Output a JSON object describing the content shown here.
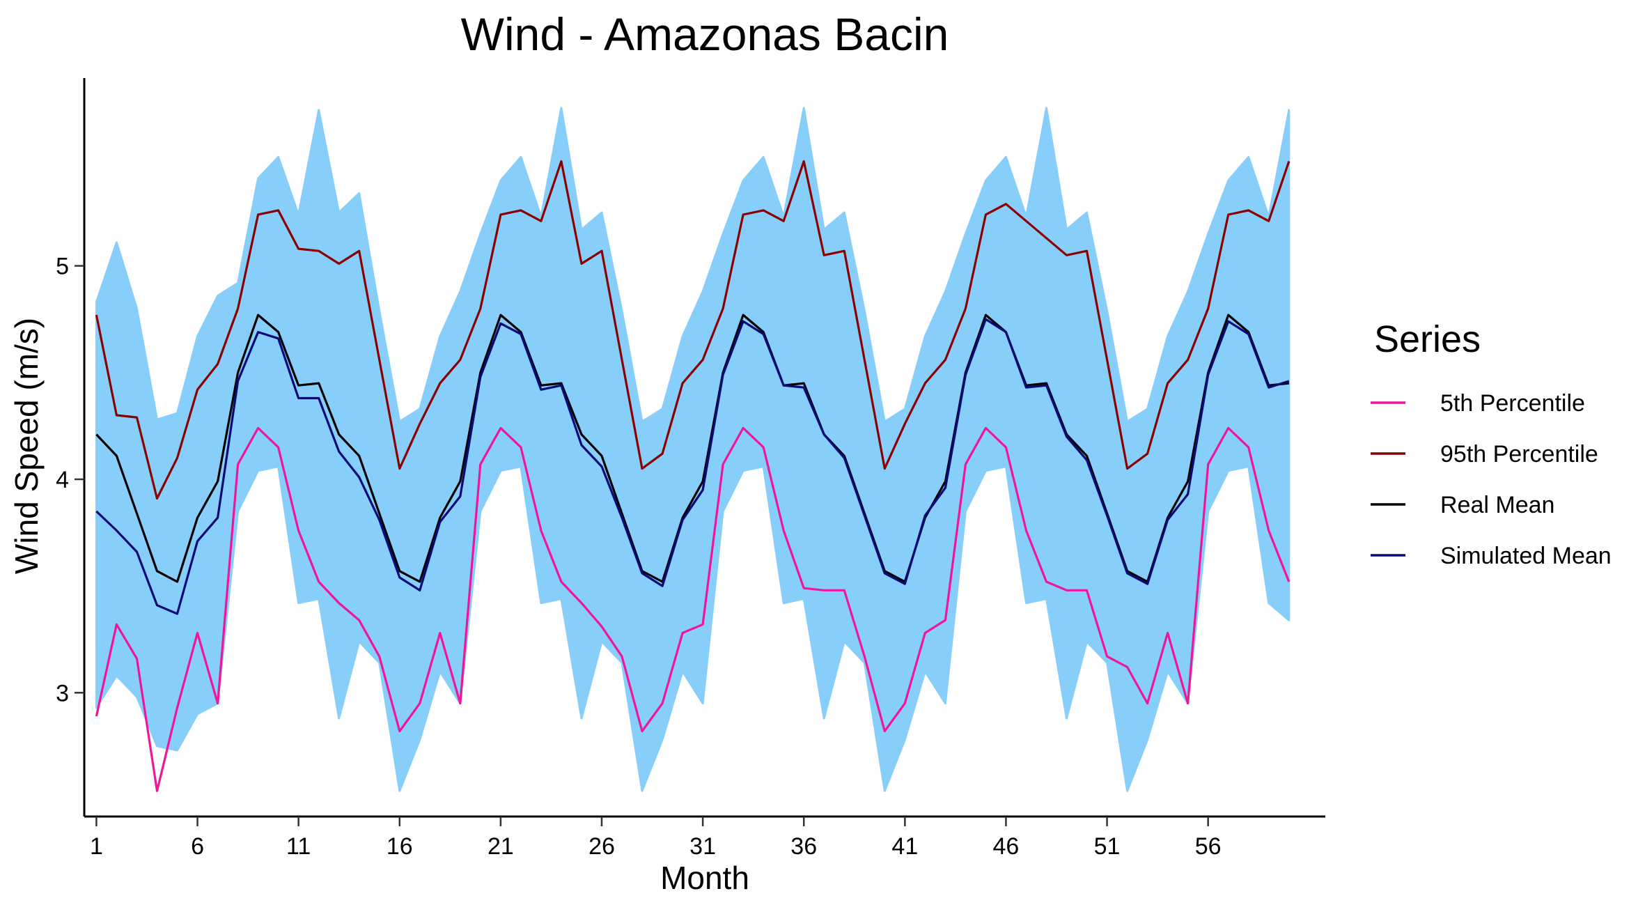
{
  "chart_data": {
    "type": "line",
    "title": "Wind - Amazonas Bacin",
    "xlabel": "Month",
    "ylabel": "Wind Speed (m/s)",
    "xlim": [
      0.4,
      61.8
    ],
    "ylim": [
      2.42,
      5.88
    ],
    "x_ticks": [
      1,
      6,
      11,
      16,
      21,
      26,
      31,
      36,
      41,
      46,
      51,
      56
    ],
    "y_ticks": [
      3,
      4,
      5
    ],
    "grid": false,
    "legend": {
      "title": "Series",
      "position": "right"
    },
    "x": [
      1,
      2,
      3,
      4,
      5,
      6,
      7,
      8,
      9,
      10,
      11,
      12,
      13,
      14,
      15,
      16,
      17,
      18,
      19,
      20,
      21,
      22,
      23,
      24,
      25,
      26,
      27,
      28,
      29,
      30,
      31,
      32,
      33,
      34,
      35,
      36,
      37,
      38,
      39,
      40,
      41,
      42,
      43,
      44,
      45,
      46,
      47,
      48,
      49,
      50,
      51,
      52,
      53,
      54,
      55,
      56,
      57,
      58,
      59,
      60
    ],
    "series": [
      {
        "name": "5th Percentile",
        "color": "#f0169a",
        "values": [
          2.89,
          3.32,
          3.16,
          2.54,
          2.93,
          3.28,
          2.95,
          4.07,
          4.24,
          4.15,
          3.76,
          3.52,
          3.42,
          3.34,
          3.17,
          2.82,
          2.95,
          3.28,
          2.95,
          4.07,
          4.24,
          4.15,
          3.76,
          3.52,
          3.42,
          3.31,
          3.17,
          2.82,
          2.95,
          3.28,
          3.32,
          4.07,
          4.24,
          4.15,
          3.76,
          3.49,
          3.48,
          3.48,
          3.17,
          2.82,
          2.95,
          3.28,
          3.34,
          4.07,
          4.24,
          4.15,
          3.76,
          3.52,
          3.48,
          3.48,
          3.17,
          3.12,
          2.95,
          3.28,
          2.95,
          4.07,
          4.24,
          4.15,
          3.76,
          3.52
        ]
      },
      {
        "name": "95th Percentile",
        "color": "#8b0000",
        "values": [
          4.77,
          4.3,
          4.29,
          3.91,
          4.1,
          4.42,
          4.54,
          4.8,
          5.24,
          5.26,
          5.08,
          5.07,
          5.01,
          5.07,
          4.56,
          4.05,
          4.26,
          4.45,
          4.56,
          4.8,
          5.24,
          5.26,
          5.21,
          5.49,
          5.01,
          5.07,
          4.56,
          4.05,
          4.12,
          4.45,
          4.56,
          4.8,
          5.24,
          5.26,
          5.21,
          5.49,
          5.05,
          5.07,
          4.56,
          4.05,
          4.26,
          4.45,
          4.56,
          4.8,
          5.24,
          5.29,
          5.21,
          5.13,
          5.05,
          5.07,
          4.56,
          4.05,
          4.12,
          4.45,
          4.56,
          4.8,
          5.24,
          5.26,
          5.21,
          5.49
        ]
      },
      {
        "name": "Real Mean",
        "color": "#000000",
        "values": [
          4.21,
          4.11,
          3.84,
          3.57,
          3.52,
          3.82,
          3.99,
          4.5,
          4.77,
          4.69,
          4.44,
          4.45,
          4.21,
          4.11,
          3.84,
          3.57,
          3.52,
          3.82,
          3.99,
          4.5,
          4.77,
          4.69,
          4.44,
          4.45,
          4.21,
          4.11,
          3.84,
          3.57,
          3.52,
          3.82,
          3.99,
          4.5,
          4.77,
          4.69,
          4.44,
          4.45,
          4.21,
          4.11,
          3.84,
          3.57,
          3.52,
          3.82,
          3.99,
          4.5,
          4.77,
          4.69,
          4.44,
          4.45,
          4.21,
          4.11,
          3.84,
          3.57,
          3.52,
          3.82,
          3.99,
          4.5,
          4.77,
          4.69,
          4.44,
          4.45
        ]
      },
      {
        "name": "Simulated Mean",
        "color": "#0a0a78",
        "values": [
          3.85,
          3.76,
          3.66,
          3.41,
          3.37,
          3.71,
          3.82,
          4.46,
          4.69,
          4.66,
          4.38,
          4.38,
          4.13,
          4.01,
          3.81,
          3.54,
          3.48,
          3.8,
          3.92,
          4.48,
          4.73,
          4.68,
          4.42,
          4.44,
          4.16,
          4.06,
          3.82,
          3.56,
          3.5,
          3.81,
          3.95,
          4.49,
          4.74,
          4.68,
          4.44,
          4.43,
          4.21,
          4.1,
          3.83,
          3.56,
          3.51,
          3.83,
          3.96,
          4.49,
          4.75,
          4.69,
          4.43,
          4.44,
          4.2,
          4.09,
          3.83,
          3.56,
          3.51,
          3.81,
          3.93,
          4.49,
          4.74,
          4.68,
          4.43,
          4.46
        ]
      }
    ],
    "simulated_band": {
      "color": "#87cefa",
      "min": [
        2.93,
        3.08,
        2.98,
        2.75,
        2.73,
        2.9,
        2.95,
        3.85,
        4.04,
        4.06,
        3.42,
        3.44,
        2.88,
        3.24,
        3.14,
        2.54,
        2.78,
        3.1,
        2.95,
        3.85,
        4.04,
        4.06,
        3.42,
        3.44,
        2.88,
        3.24,
        3.14,
        2.54,
        2.78,
        3.1,
        2.95,
        3.85,
        4.04,
        4.06,
        3.42,
        3.44,
        2.88,
        3.24,
        3.14,
        2.54,
        2.78,
        3.1,
        2.95,
        3.85,
        4.04,
        4.06,
        3.42,
        3.44,
        2.88,
        3.24,
        3.14,
        2.54,
        2.78,
        3.1,
        2.95,
        3.85,
        4.04,
        4.06,
        3.42,
        3.34
      ],
      "max": [
        4.83,
        5.11,
        4.8,
        4.28,
        4.31,
        4.67,
        4.86,
        4.92,
        5.41,
        5.51,
        5.24,
        5.73,
        5.25,
        5.34,
        4.79,
        4.27,
        4.33,
        4.67,
        4.88,
        5.15,
        5.4,
        5.51,
        5.23,
        5.74,
        5.17,
        5.25,
        4.79,
        4.27,
        4.33,
        4.67,
        4.88,
        5.15,
        5.4,
        5.51,
        5.23,
        5.74,
        5.17,
        5.25,
        4.79,
        4.27,
        4.33,
        4.67,
        4.88,
        5.15,
        5.4,
        5.51,
        5.23,
        5.74,
        5.17,
        5.25,
        4.79,
        4.27,
        4.33,
        4.67,
        4.88,
        5.15,
        5.4,
        5.51,
        5.23,
        5.73
      ]
    }
  }
}
